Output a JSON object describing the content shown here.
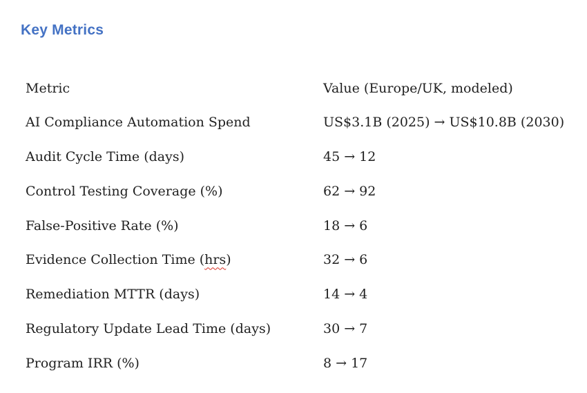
{
  "page": {
    "background_color": "#ffffff",
    "text_color": "#1f1f1f"
  },
  "heading": {
    "text": "Key Metrics",
    "color": "#4472C4"
  },
  "table": {
    "header": {
      "metric": "Metric",
      "value": "Value (Europe/UK, modeled)"
    },
    "rows": [
      {
        "metric": "AI Compliance Automation Spend",
        "value": "US$3.1B (2025) → US$10.8B (2030)"
      },
      {
        "metric": "Audit Cycle Time (days)",
        "value": "45 → 12"
      },
      {
        "metric": "Control Testing Coverage (%)",
        "value": "62 → 92"
      },
      {
        "metric": "False-Positive Rate (%)",
        "value": "18 → 6"
      },
      {
        "metric": "Evidence Collection Time (hrs)",
        "value": "32 → 6",
        "misspelled_word": "hrs"
      },
      {
        "metric": "Remediation MTTR (days)",
        "value": "14 → 4"
      },
      {
        "metric": "Regulatory Update Lead Time (days)",
        "value": "30 → 7"
      },
      {
        "metric": "Program IRR (%)",
        "value": "8 → 17"
      }
    ],
    "spellcheck_underline_color": "#d93025"
  }
}
